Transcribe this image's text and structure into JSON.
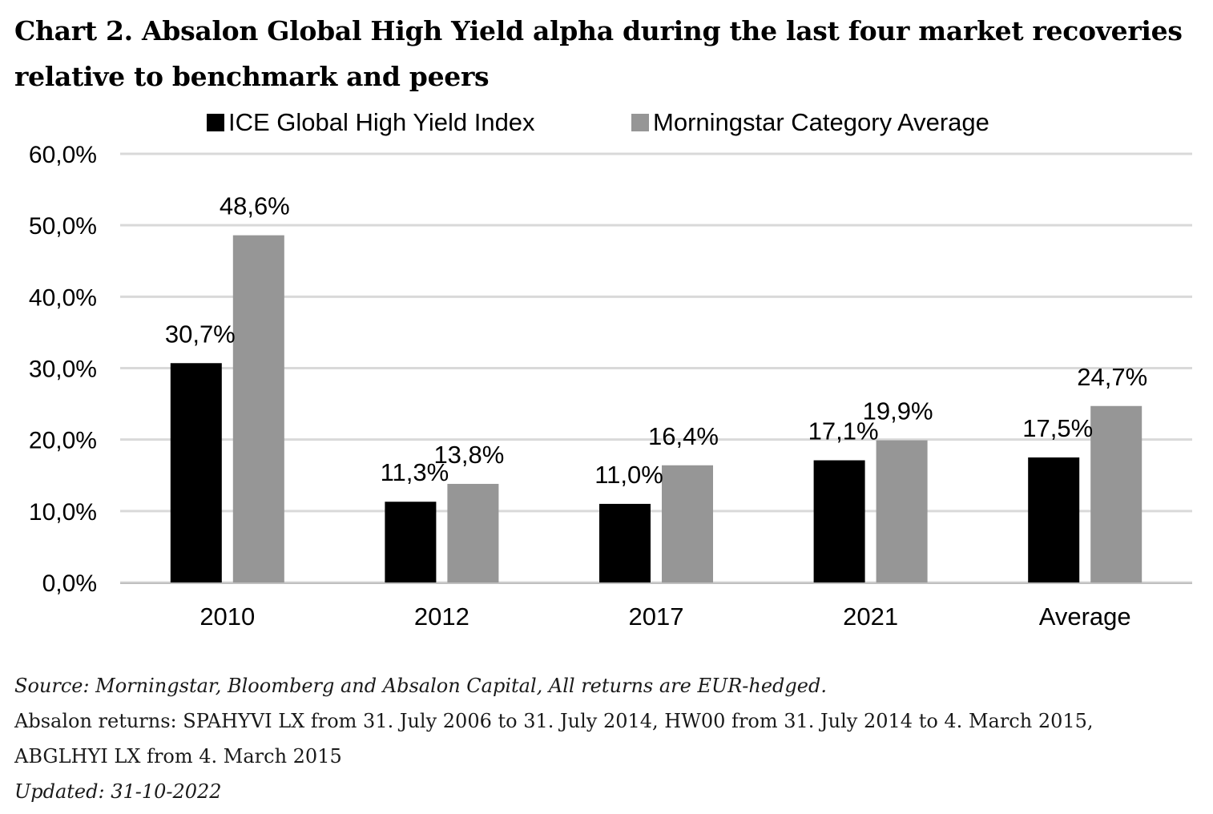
{
  "chart_data": {
    "type": "bar",
    "title": "Chart 2. Absalon Global High Yield alpha during the last four market recoveries relative to benchmark and peers",
    "categories": [
      "2010",
      "2012",
      "2017",
      "2021",
      "Average"
    ],
    "series": [
      {
        "name": "ICE Global High Yield Index",
        "values": [
          30.7,
          11.3,
          11.0,
          17.1,
          17.5
        ],
        "labels": [
          "30,7%",
          "11,3%",
          "11,0%",
          "17,1%",
          "17,5%"
        ],
        "color": "#000000"
      },
      {
        "name": "Morningstar Category Average",
        "values": [
          48.6,
          13.8,
          16.4,
          19.9,
          24.7
        ],
        "labels": [
          "48,6%",
          "13,8%",
          "16,4%",
          "19,9%",
          "24,7%"
        ],
        "color": "#969696"
      }
    ],
    "y_ticks": [
      0,
      10,
      20,
      30,
      40,
      50,
      60
    ],
    "y_tick_labels": [
      "0,0%",
      "10,0%",
      "20,0%",
      "30,0%",
      "40,0%",
      "50,0%",
      "60,0%"
    ],
    "ylim": [
      0,
      60
    ],
    "xlabel": "",
    "ylabel": "",
    "grid": true,
    "gridline_color": "#d9d9d9",
    "legend": "top"
  },
  "footer": {
    "source": "Source: Morningstar, Bloomberg and Absalon Capital, All returns are EUR-hedged.",
    "returns_line1": "Absalon returns: SPAHYVI LX from  31. July 2006 to 31. July 2014, HW00 from 31. July 2014 to 4. March 2015,",
    "returns_line2": "ABGLHYI  LX from 4. March 2015",
    "updated": "Updated: 31-10-2022"
  }
}
